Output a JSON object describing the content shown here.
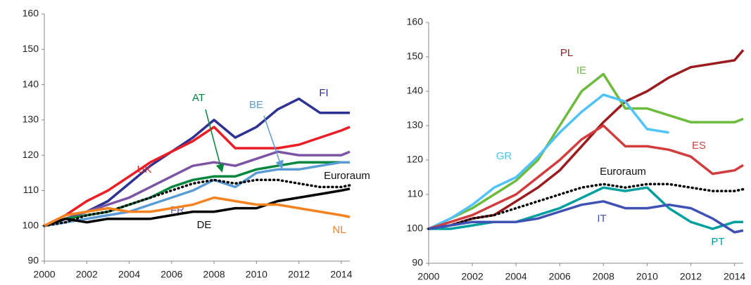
{
  "chart_data": [
    {
      "type": "line",
      "x": [
        2000,
        2001,
        2002,
        2003,
        2004,
        2005,
        2006,
        2007,
        2008,
        2009,
        2010,
        2011,
        2012,
        2013,
        2014,
        2014.4
      ],
      "xlim": [
        2000,
        2014.4
      ],
      "xticks": [
        2000,
        2002,
        2004,
        2006,
        2008,
        2010,
        2012,
        2014
      ],
      "ylim": [
        90,
        160
      ],
      "yticks": [
        90,
        100,
        110,
        120,
        130,
        140,
        150,
        160
      ],
      "series": [
        {
          "name": "FI",
          "color": "#2e3192",
          "values": [
            100,
            102,
            104,
            107,
            112,
            117,
            121,
            125,
            130,
            125,
            128,
            133,
            136,
            132,
            132,
            132
          ]
        },
        {
          "name": "UK",
          "color": "#ed1c24",
          "values": [
            100,
            103,
            107,
            110,
            114,
            118,
            121,
            124,
            128,
            122,
            122,
            122,
            123,
            125,
            127,
            128
          ]
        },
        {
          "name": "FR",
          "color": "#7b55a4",
          "values": [
            100,
            102,
            104,
            106,
            108,
            111,
            114,
            117,
            118,
            117,
            119,
            121,
            120,
            120,
            120,
            121
          ]
        },
        {
          "name": "AT",
          "color": "#00873e",
          "values": [
            100,
            102,
            103,
            104,
            106,
            108,
            111,
            113,
            114,
            114,
            116,
            117,
            118,
            118,
            118,
            118
          ]
        },
        {
          "name": "BE",
          "color": "#5b9bd5",
          "values": [
            100,
            101,
            102,
            103,
            104,
            106,
            108,
            110,
            113,
            111,
            115,
            116,
            116,
            117,
            118,
            118
          ]
        },
        {
          "name": "Euroraum",
          "color": "#000000",
          "style": "dotted",
          "values": [
            100,
            101,
            103,
            104,
            106,
            108,
            110,
            112,
            113,
            112,
            113,
            113,
            112,
            111,
            111,
            111.5
          ]
        },
        {
          "name": "DE",
          "color": "#000000",
          "values": [
            100,
            102,
            101,
            102,
            102,
            102,
            103,
            104,
            104,
            105,
            105,
            107,
            108,
            109,
            110,
            110.5
          ]
        },
        {
          "name": "NL",
          "color": "#f58220",
          "values": [
            100,
            103,
            104,
            105,
            104,
            104,
            105,
            106,
            108,
            107,
            106,
            106,
            105,
            104,
            103,
            102.5
          ]
        }
      ]
    },
    {
      "type": "line",
      "x": [
        2000,
        2001,
        2002,
        2003,
        2004,
        2005,
        2006,
        2007,
        2008,
        2009,
        2010,
        2011,
        2012,
        2013,
        2014,
        2014.4
      ],
      "xlim": [
        2000,
        2014.4
      ],
      "xticks": [
        2000,
        2002,
        2004,
        2006,
        2008,
        2010,
        2012,
        2014
      ],
      "ylim": [
        90,
        160
      ],
      "yticks": [
        90,
        100,
        110,
        120,
        130,
        140,
        150,
        160
      ],
      "series": [
        {
          "name": "PL",
          "color": "#9b1b1f",
          "values": [
            100,
            101,
            103,
            104,
            108,
            112,
            117,
            124,
            131,
            137,
            140,
            144,
            147,
            148,
            149,
            152
          ]
        },
        {
          "name": "IE",
          "color": "#6cbb3c",
          "values": [
            100,
            103,
            106,
            110,
            114,
            120,
            130,
            140,
            145,
            135,
            135,
            133,
            131,
            131,
            131,
            132
          ]
        },
        {
          "name": "GR",
          "color": "#4fc3f7",
          "values": [
            100,
            103,
            107,
            112,
            115,
            121,
            128,
            134,
            139,
            137,
            129,
            128,
            null,
            null,
            null,
            null
          ]
        },
        {
          "name": "ES",
          "color": "#d23c3c",
          "values": [
            100,
            102,
            104,
            107,
            110,
            115,
            120,
            126,
            130,
            124,
            124,
            123,
            121,
            116,
            117,
            118.5
          ]
        },
        {
          "name": "Euroraum",
          "color": "#000000",
          "style": "dotted",
          "values": [
            100,
            101,
            103,
            104,
            106,
            108,
            110,
            112,
            113,
            112,
            113,
            113,
            112,
            111,
            111,
            111.5
          ]
        },
        {
          "name": "PT",
          "color": "#00a0a0",
          "values": [
            100,
            100,
            101,
            102,
            102,
            104,
            106,
            109,
            112,
            111,
            112,
            106,
            102,
            100,
            102,
            102
          ]
        },
        {
          "name": "IT",
          "color": "#3f51b5",
          "values": [
            100,
            101,
            102,
            102,
            102,
            103,
            105,
            107,
            108,
            106,
            106,
            107,
            106,
            103,
            99,
            99.5
          ]
        }
      ]
    }
  ]
}
